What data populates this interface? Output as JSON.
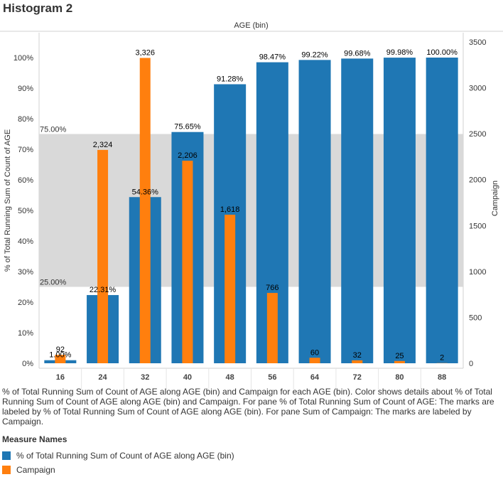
{
  "page_title": "Histogram 2",
  "chart_data": {
    "type": "bar",
    "title": "AGE (bin)",
    "categories": [
      "16",
      "24",
      "32",
      "40",
      "48",
      "56",
      "64",
      "72",
      "80",
      "88"
    ],
    "series": [
      {
        "name": "% of Total Running Sum of Count of AGE along AGE (bin)",
        "axis": "left",
        "color": "#1f77b4",
        "values": [
          1.0,
          22.31,
          54.36,
          75.65,
          91.28,
          98.47,
          99.22,
          99.68,
          99.98,
          100.0
        ],
        "labels": [
          "1.00%",
          "22.31%",
          "54.36%",
          "75.65%",
          "91.28%",
          "98.47%",
          "99.22%",
          "99.68%",
          "99.98%",
          "100.00%"
        ]
      },
      {
        "name": "Campaign",
        "axis": "right",
        "color": "#ff7f0e",
        "values": [
          92,
          2324,
          3326,
          2206,
          1618,
          766,
          60,
          32,
          25,
          2
        ],
        "labels": [
          "92",
          "2,324",
          "3,326",
          "2,206",
          "1,618",
          "766",
          "60",
          "32",
          "25",
          "2"
        ]
      }
    ],
    "ylabel_left": "% of Total Running Sum of Count of AGE",
    "ylabel_right": "Campaign",
    "ylim_left": [
      0,
      105
    ],
    "ylim_right": [
      0,
      3500
    ],
    "yticks_left": [
      "0%",
      "10%",
      "20%",
      "30%",
      "40%",
      "50%",
      "60%",
      "70%",
      "80%",
      "90%",
      "100%"
    ],
    "yticks_right": [
      "0",
      "500",
      "1000",
      "1500",
      "2000",
      "2500",
      "3000",
      "3500"
    ],
    "reference_band": {
      "low": 25,
      "high": 75,
      "low_label": "25.00%",
      "high_label": "75.00%",
      "color": "#d9d9d9"
    },
    "grid": false
  },
  "caption": "% of Total Running Sum of Count of AGE along AGE (bin) and Campaign for each AGE (bin).  Color shows details about % of Total Running Sum of Count of AGE along AGE (bin) and Campaign.  For pane % of Total Running Sum of Count of AGE:  The marks are labeled by % of Total Running Sum of Count of AGE along AGE (bin).  For pane Sum of Campaign:  The marks are labeled by Campaign.",
  "legend": {
    "title": "Measure Names",
    "items": [
      {
        "label": "% of Total Running Sum of Count of AGE along AGE (bin)",
        "color": "#1f77b4"
      },
      {
        "label": "Campaign",
        "color": "#ff7f0e"
      }
    ]
  }
}
